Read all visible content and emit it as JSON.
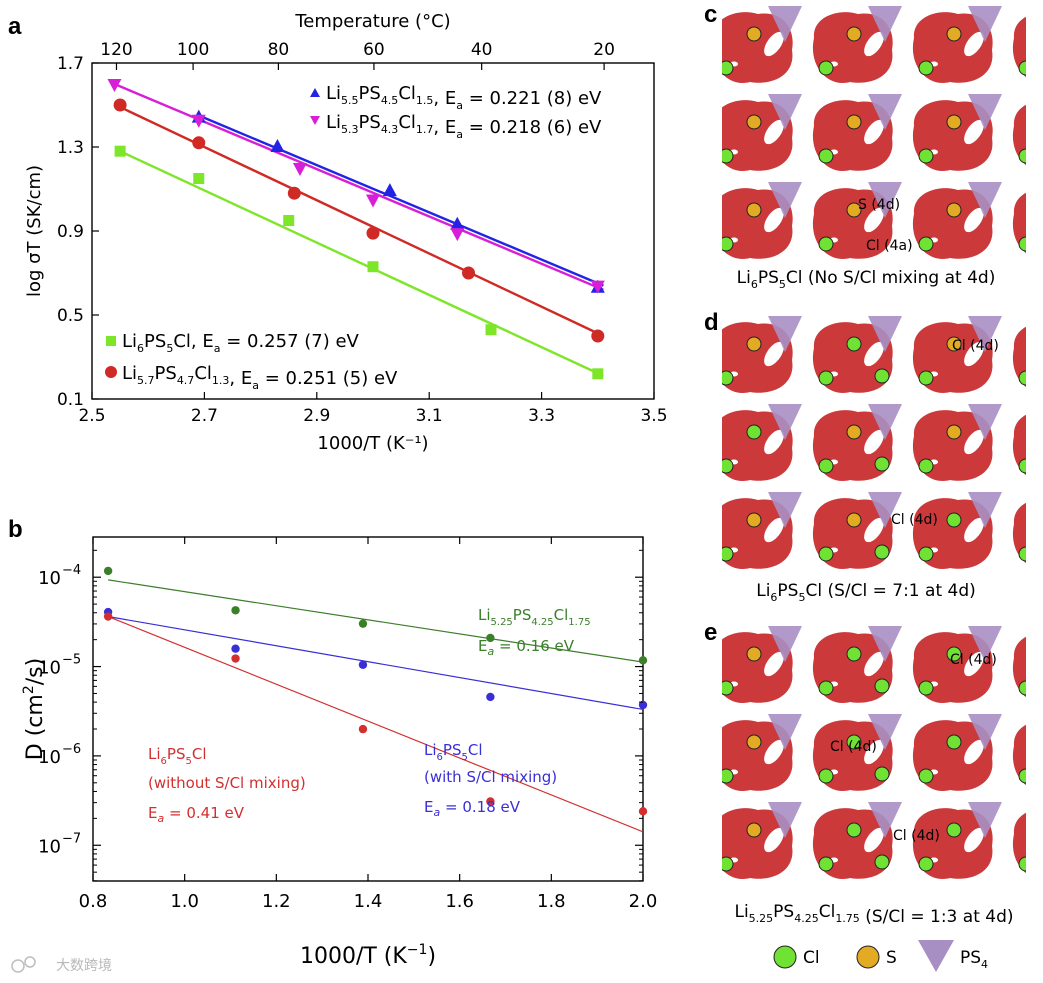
{
  "panels": {
    "a": "a",
    "b": "b",
    "c": "c",
    "d": "d",
    "e": "e"
  },
  "chart_data": [
    {
      "id": "a",
      "type": "scatter",
      "title": "",
      "xlabel": "1000/T (K⁻¹)",
      "ylabel": "log σT (SK/cm)",
      "top_xlabel": "Temperature (°C)",
      "xlim": [
        2.5,
        3.5
      ],
      "ylim": [
        0.1,
        1.7
      ],
      "xticks": [
        2.5,
        2.7,
        2.9,
        3.1,
        3.3,
        3.5
      ],
      "xtick_labels": [
        "2.5",
        "2.7",
        "2.9",
        "3.1",
        "3.3",
        "3.5"
      ],
      "yticks": [
        0.1,
        0.5,
        0.9,
        1.3,
        1.7
      ],
      "ytick_labels": [
        "0.1",
        "0.5",
        "0.9",
        "1.3",
        "1.7"
      ],
      "top_ticks": [
        120,
        100,
        80,
        60,
        40,
        20
      ],
      "top_tick_labels": [
        "120",
        "100",
        "80",
        "60",
        "40",
        "20"
      ],
      "series": [
        {
          "name": "Li5.5PS4.5Cl1.5",
          "formula": [
            [
              "Li",
              ""
            ],
            [
              "5.5",
              "s"
            ],
            [
              "PS",
              ""
            ],
            [
              "4.5",
              "s"
            ],
            [
              "Cl",
              ""
            ],
            [
              "1.5",
              "s"
            ]
          ],
          "ea": "0.221 (8) eV",
          "color": "#2323e6",
          "marker": "triangle-up",
          "x": [
            2.69,
            2.83,
            3.03,
            3.15,
            3.4
          ],
          "y": [
            1.44,
            1.3,
            1.09,
            0.93,
            0.63
          ],
          "line": [
            [
              2.69,
              1.45
            ],
            [
              3.41,
              0.64
            ]
          ]
        },
        {
          "name": "Li5.3PS4.3Cl1.7",
          "formula": [
            [
              "Li",
              ""
            ],
            [
              "5.3",
              "s"
            ],
            [
              "PS",
              ""
            ],
            [
              "4.3",
              "s"
            ],
            [
              "Cl",
              ""
            ],
            [
              "1.7",
              "s"
            ]
          ],
          "ea": "0.218 (6) eV",
          "color": "#d61fd6",
          "marker": "triangle-down",
          "x": [
            2.54,
            2.69,
            2.87,
            3.0,
            3.15,
            3.4
          ],
          "y": [
            1.6,
            1.43,
            1.2,
            1.05,
            0.89,
            0.64
          ],
          "line": [
            [
              2.54,
              1.6
            ],
            [
              3.41,
              0.62
            ]
          ]
        },
        {
          "name": "Li6PS5Cl",
          "formula": [
            [
              "Li",
              ""
            ],
            [
              "6",
              "s"
            ],
            [
              "PS",
              ""
            ],
            [
              "5",
              "s"
            ],
            [
              "Cl",
              ""
            ]
          ],
          "ea": "0.257 (7) eV",
          "color": "#7ee629",
          "marker": "square",
          "x": [
            2.55,
            2.69,
            2.85,
            3.0,
            3.21,
            3.4
          ],
          "y": [
            1.28,
            1.15,
            0.95,
            0.73,
            0.43,
            0.22
          ],
          "line": [
            [
              2.55,
              1.28
            ],
            [
              3.41,
              0.21
            ]
          ]
        },
        {
          "name": "Li5.7PS4.7Cl1.3",
          "formula": [
            [
              "Li",
              ""
            ],
            [
              "5.7",
              "s"
            ],
            [
              "PS",
              ""
            ],
            [
              "4.7",
              "s"
            ],
            [
              "Cl",
              ""
            ],
            [
              "1.3",
              "s"
            ]
          ],
          "ea": "0.251 (5) eV",
          "color": "#cf2a26",
          "marker": "circle",
          "x": [
            2.55,
            2.69,
            2.86,
            3.0,
            3.17,
            3.4
          ],
          "y": [
            1.5,
            1.32,
            1.08,
            0.89,
            0.7,
            0.4
          ],
          "line": [
            [
              2.55,
              1.49
            ],
            [
              3.41,
              0.4
            ]
          ]
        }
      ]
    },
    {
      "id": "b",
      "type": "scatter",
      "yscale": "log",
      "title": "",
      "xlabel": "1000/T (K⁻¹)",
      "ylabel": "D (cm²/s)",
      "xlim": [
        0.8,
        2.0
      ],
      "ylim_log10": [
        -7.4,
        -3.55
      ],
      "xticks": [
        0.8,
        1.0,
        1.2,
        1.4,
        1.6,
        1.8,
        2.0
      ],
      "xtick_labels": [
        "0.8",
        "1.0",
        "1.2",
        "1.4",
        "1.6",
        "1.8",
        "2.0"
      ],
      "yticks_exp": [
        -7,
        -6,
        -5,
        -4
      ],
      "ytick_base": "10",
      "series": [
        {
          "name": "Li5.25PS4.25Cl1.75",
          "ea_label": "Eₐ = 0.16 eV",
          "color": "#3b7f2a",
          "x": [
            0.833,
            1.111,
            1.389,
            1.667,
            2.0
          ],
          "log10_y": [
            -3.93,
            -4.37,
            -4.52,
            -4.68,
            -4.93
          ],
          "line": [
            [
              0.833,
              -4.03
            ],
            [
              2.0,
              -4.95
            ]
          ]
        },
        {
          "name": "Li6PS5Cl (with S/Cl mixing)",
          "ea_label": "Eₐ = 0.18 eV",
          "color": "#3a2ed6",
          "x": [
            0.833,
            1.111,
            1.389,
            1.667,
            2.0
          ],
          "log10_y": [
            -4.39,
            -4.8,
            -4.98,
            -5.34,
            -5.43
          ],
          "line": [
            [
              0.833,
              -4.44
            ],
            [
              2.0,
              -5.48
            ]
          ]
        },
        {
          "name": "Li6PS5Cl (without S/Cl mixing)",
          "ea_label": "Eₐ = 0.41 eV",
          "color": "#d32f2f",
          "x": [
            0.833,
            1.111,
            1.389,
            1.667,
            2.0
          ],
          "log10_y": [
            -4.44,
            -4.91,
            -5.7,
            -6.51,
            -6.62
          ],
          "line": [
            [
              0.833,
              -4.44
            ],
            [
              2.0,
              -6.85
            ]
          ]
        }
      ],
      "annotations": {
        "green": {
          "formula": [
            [
              "Li",
              ""
            ],
            [
              "5.25",
              "s"
            ],
            [
              "PS",
              ""
            ],
            [
              "4.25",
              "s"
            ],
            [
              "Cl",
              ""
            ],
            [
              "1.75",
              "s"
            ]
          ],
          "ea": "E",
          "ea_sub": "a",
          "ea_val": " = 0.16 eV"
        },
        "blue": {
          "formula": [
            [
              "Li",
              ""
            ],
            [
              "6",
              "s"
            ],
            [
              "PS",
              ""
            ],
            [
              "5",
              "s"
            ],
            [
              "Cl",
              ""
            ]
          ],
          "line2": "(with S/Cl mixing)",
          "ea": "E",
          "ea_sub": "a",
          "ea_val": " = 0.18 eV"
        },
        "red": {
          "formula": [
            [
              "Li",
              ""
            ],
            [
              "6",
              "s"
            ],
            [
              "PS",
              ""
            ],
            [
              "5",
              "s"
            ],
            [
              "Cl",
              ""
            ]
          ],
          "line2": "(without S/Cl mixing)",
          "ea": "E",
          "ea_sub": "a",
          "ea_val": " = 0.41 eV"
        }
      }
    }
  ],
  "structures": {
    "c": {
      "caption_pre": [
        [
          "Li",
          ""
        ],
        [
          "6",
          "s"
        ],
        [
          "PS",
          ""
        ],
        [
          "5",
          "s"
        ],
        [
          "Cl",
          ""
        ]
      ],
      "caption_post": " (No S/Cl mixing at 4d)",
      "labels": [
        "S (4d)",
        "Cl (4a)"
      ]
    },
    "d": {
      "caption_pre": [
        [
          "Li",
          ""
        ],
        [
          "6",
          "s"
        ],
        [
          "PS",
          ""
        ],
        [
          "5",
          "s"
        ],
        [
          "Cl",
          ""
        ]
      ],
      "caption_post": " (S/Cl = 7:1 at 4d)",
      "labels": [
        "Cl (4d)",
        "Cl (4d)"
      ]
    },
    "e": {
      "caption_pre": [
        [
          "Li",
          ""
        ],
        [
          "5.25",
          "s"
        ],
        [
          "PS",
          ""
        ],
        [
          "4.25",
          "s"
        ],
        [
          "Cl",
          ""
        ],
        [
          "1.75",
          "s"
        ]
      ],
      "caption_post": " (S/Cl = 1:3 at 4d)",
      "labels": [
        "Cl (4d)",
        "Cl (4d)",
        "Cl (4d)"
      ]
    },
    "legend": {
      "cl": "Cl",
      "s": "S",
      "ps4_base": "PS",
      "ps4_sub": "4"
    },
    "colors": {
      "density": "#c8282a",
      "cl": "#6fe233",
      "s": "#e3ab23",
      "ps4": "#a88fc3"
    }
  },
  "watermark": "大数跨境"
}
